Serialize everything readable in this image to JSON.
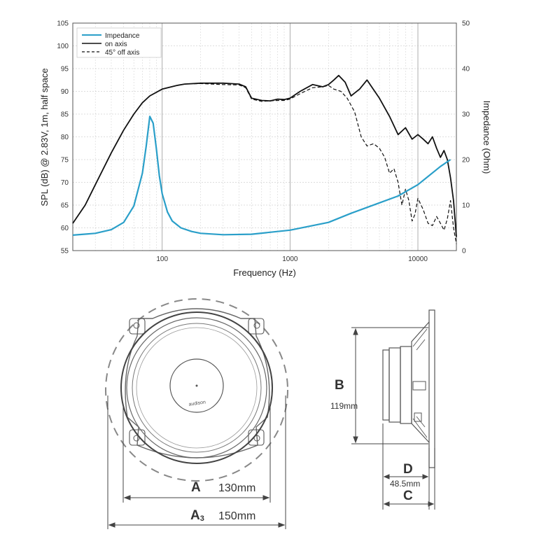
{
  "chart_data": {
    "type": "line",
    "xlabel": "Frequency (Hz)",
    "ylabel": "SPL (dB) @ 2.83V, 1m, half space",
    "y2label": "Impedance (Ohm)",
    "xscale": "log",
    "xlim": [
      20,
      20000
    ],
    "ylim": [
      55,
      105
    ],
    "y2lim": [
      0,
      50
    ],
    "x_ticks": [
      "100",
      "1000",
      "10000"
    ],
    "y_ticks": [
      55,
      60,
      65,
      70,
      75,
      80,
      85,
      90,
      95,
      100,
      105
    ],
    "y2_ticks": [
      0,
      10,
      20,
      30,
      40,
      50
    ],
    "grid": true,
    "legend_position": "top-left",
    "series": [
      {
        "name": "Impedance",
        "axis": "right",
        "color": "#2a9fc9",
        "dash": "solid",
        "x": [
          20,
          30,
          40,
          50,
          60,
          70,
          75,
          80,
          85,
          90,
          95,
          100,
          110,
          120,
          140,
          170,
          200,
          300,
          500,
          1000,
          2000,
          3000,
          5000,
          7000,
          10000,
          15000,
          18000
        ],
        "y": [
          3.4,
          3.8,
          4.6,
          6.2,
          9.8,
          17,
          23,
          29.5,
          28,
          22.5,
          16.5,
          12.5,
          8.5,
          6.5,
          5.0,
          4.2,
          3.8,
          3.5,
          3.6,
          4.5,
          6.2,
          8.2,
          10.5,
          12.0,
          14.5,
          18.5,
          20.0
        ]
      },
      {
        "name": "on axis",
        "axis": "left",
        "color": "#111111",
        "dash": "solid",
        "x": [
          20,
          25,
          30,
          40,
          50,
          60,
          70,
          80,
          100,
          130,
          150,
          200,
          300,
          400,
          450,
          500,
          600,
          700,
          800,
          900,
          1000,
          1200,
          1500,
          1800,
          2000,
          2200,
          2400,
          2700,
          3000,
          3500,
          4000,
          5000,
          6000,
          7000,
          8000,
          9000,
          10000,
          11000,
          12000,
          13000,
          14000,
          15000,
          16000,
          17000,
          18000,
          19000,
          20000
        ],
        "y": [
          61,
          65,
          69.5,
          76.5,
          81.5,
          85,
          87.5,
          89,
          90.5,
          91.3,
          91.6,
          91.8,
          91.8,
          91.6,
          91.0,
          88.5,
          88.0,
          87.9,
          88.3,
          88.2,
          88.5,
          90,
          91.5,
          91.0,
          91.5,
          92.5,
          93.5,
          92.0,
          89.0,
          90.5,
          92.5,
          88.5,
          84.5,
          80.5,
          82.0,
          79.5,
          80.5,
          79.5,
          78.5,
          80.0,
          77.5,
          75.5,
          77.0,
          75.0,
          71.0,
          66.0,
          58.0
        ]
      },
      {
        "name": "45° off axis",
        "axis": "left",
        "color": "#111111",
        "dash": "dashed",
        "x": [
          20,
          25,
          30,
          40,
          50,
          60,
          70,
          80,
          100,
          130,
          150,
          200,
          300,
          400,
          450,
          500,
          600,
          700,
          800,
          900,
          1000,
          1200,
          1500,
          1800,
          2000,
          2200,
          2500,
          2800,
          3200,
          3600,
          4000,
          4500,
          5000,
          5500,
          6000,
          6500,
          7000,
          7500,
          8000,
          8500,
          9000,
          9500,
          10000,
          11000,
          12000,
          13000,
          14000,
          15000,
          16000,
          17000,
          18000,
          19000,
          20000
        ],
        "y": [
          61,
          65,
          69.5,
          76.5,
          81.5,
          85,
          87.5,
          89,
          90.5,
          91.3,
          91.6,
          91.7,
          91.5,
          91.4,
          90.8,
          88.3,
          87.8,
          87.9,
          88.0,
          88.0,
          88.3,
          89.5,
          90.8,
          91.0,
          91.3,
          90.5,
          90.0,
          88.5,
          85.5,
          80.0,
          78.0,
          78.5,
          77.5,
          75.5,
          72.0,
          73.0,
          70.0,
          65.0,
          68.5,
          66.0,
          61.5,
          63.0,
          66.5,
          64.0,
          61.0,
          60.5,
          62.5,
          61.0,
          59.5,
          62.0,
          66.0,
          60.0,
          56.5
        ]
      }
    ]
  },
  "diagram": {
    "brand": "audison",
    "dim_a_letter": "A",
    "dim_a_value": "130mm",
    "dim_a3_letter": "A",
    "dim_a3_sub": "3",
    "dim_a3_value": "150mm",
    "dim_b_letter": "B",
    "dim_b_value": "119mm",
    "dim_d_letter": "D",
    "dim_cd_value": "48.5mm",
    "dim_c_letter": "C"
  }
}
